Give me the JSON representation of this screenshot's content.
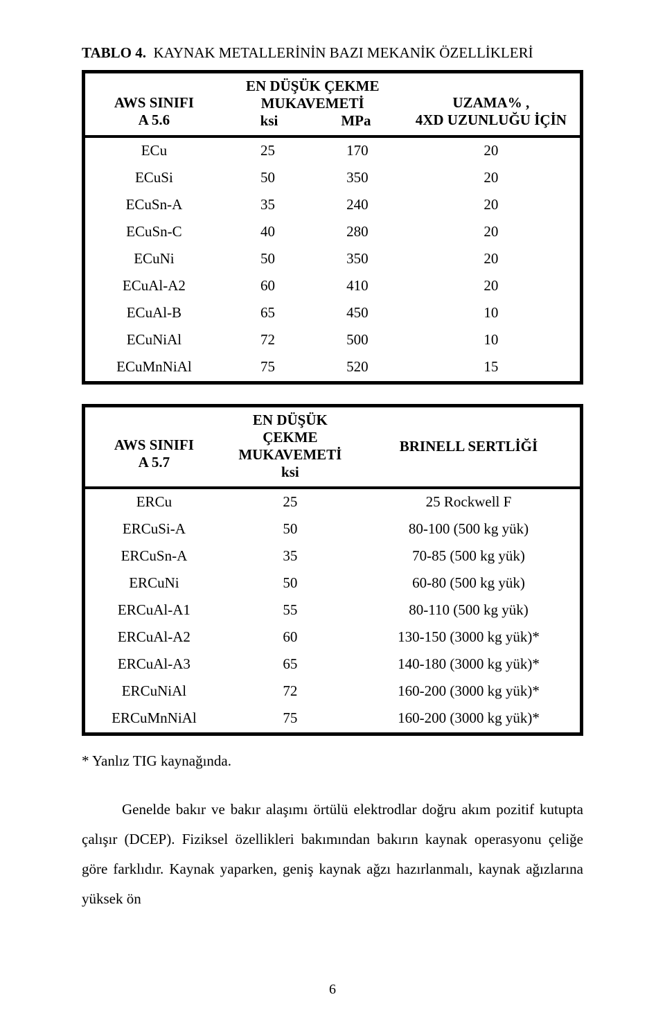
{
  "title_prefix": "TABLO 4.",
  "title_rest": "  KAYNAK METALLERİNİN BAZI MEKANİK ÖZELLİKLERİ",
  "table1": {
    "header": {
      "col1_line1": "AWS SINIFI",
      "col1_line2": "A 5.6",
      "col2_line1": "EN DÜŞÜK ÇEKME",
      "col2_line2": "MUKAVEMETİ",
      "col2_sub_left": "ksi",
      "col2_sub_right": "MPa",
      "col3_line1": "UZAMA% ,",
      "col3_line2": "4XD UZUNLUĞU İÇİN"
    },
    "rows": [
      {
        "c1": "ECu",
        "c2": "25",
        "c3": "170",
        "c4": "20"
      },
      {
        "c1": "ECuSi",
        "c2": "50",
        "c3": "350",
        "c4": "20"
      },
      {
        "c1": "ECuSn-A",
        "c2": "35",
        "c3": "240",
        "c4": "20"
      },
      {
        "c1": "ECuSn-C",
        "c2": "40",
        "c3": "280",
        "c4": "20"
      },
      {
        "c1": "ECuNi",
        "c2": "50",
        "c3": "350",
        "c4": "20"
      },
      {
        "c1": "ECuAl-A2",
        "c2": "60",
        "c3": "410",
        "c4": "20"
      },
      {
        "c1": "ECuAl-B",
        "c2": "65",
        "c3": "450",
        "c4": "10"
      },
      {
        "c1": "ECuNiAl",
        "c2": "72",
        "c3": "500",
        "c4": "10"
      },
      {
        "c1": "ECuMnNiAl",
        "c2": "75",
        "c3": "520",
        "c4": "15"
      }
    ]
  },
  "table2": {
    "header": {
      "col1_line1": "AWS SINIFI",
      "col1_line2": "A 5.7",
      "col2_line1": "EN DÜŞÜK ÇEKME",
      "col2_line2": "MUKAVEMETİ",
      "col2_line3": "ksi",
      "col3_line1": "BRINELL SERTLİĞİ"
    },
    "rows": [
      {
        "c1": "ERCu",
        "c2": "25",
        "c3": "25 Rockwell F"
      },
      {
        "c1": "ERCuSi-A",
        "c2": "50",
        "c3": "80-100  (500 kg yük)"
      },
      {
        "c1": "ERCuSn-A",
        "c2": "35",
        "c3": "70-85  (500 kg yük)"
      },
      {
        "c1": "ERCuNi",
        "c2": "50",
        "c3": "60-80  (500 kg yük)"
      },
      {
        "c1": "ERCuAl-A1",
        "c2": "55",
        "c3": "80-110  (500 kg yük)"
      },
      {
        "c1": "ERCuAl-A2",
        "c2": "60",
        "c3": "130-150  (3000 kg yük)*"
      },
      {
        "c1": "ERCuAl-A3",
        "c2": "65",
        "c3": "140-180 (3000 kg yük)*"
      },
      {
        "c1": "ERCuNiAl",
        "c2": "72",
        "c3": "160-200  (3000 kg yük)*"
      },
      {
        "c1": "ERCuMnNiAl",
        "c2": "75",
        "c3": "160-200  (3000 kg yük)*"
      }
    ]
  },
  "footnote": "* Yanlız TIG kaynağında.",
  "paragraph": "Genelde bakır ve bakır alaşımı örtülü elektrodlar doğru akım pozitif kutupta çalışır (DCEP). Fiziksel özellikleri bakımından bakırın kaynak operasyonu çeliğe göre farklıdır.  Kaynak yaparken, geniş kaynak ağzı hazırlanmalı, kaynak ağızlarına yüksek ön",
  "page_number": "6",
  "styles": {
    "page_bg": "#ffffff",
    "text_color": "#000000",
    "border_color": "#000000"
  }
}
